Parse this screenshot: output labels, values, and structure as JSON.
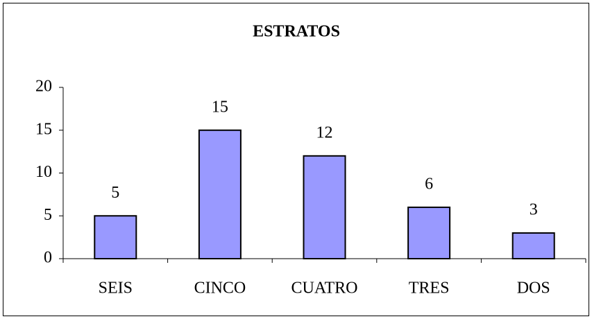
{
  "chart_data": {
    "type": "bar",
    "title": "ESTRATOS",
    "categories": [
      "SEIS",
      "CINCO",
      "CUATRO",
      "TRES",
      "DOS"
    ],
    "values": [
      5,
      15,
      12,
      6,
      3
    ],
    "color": "#9999ff",
    "ylim": [
      0,
      20
    ],
    "yticks": [
      0,
      5,
      10,
      15,
      20
    ],
    "grid": false
  }
}
